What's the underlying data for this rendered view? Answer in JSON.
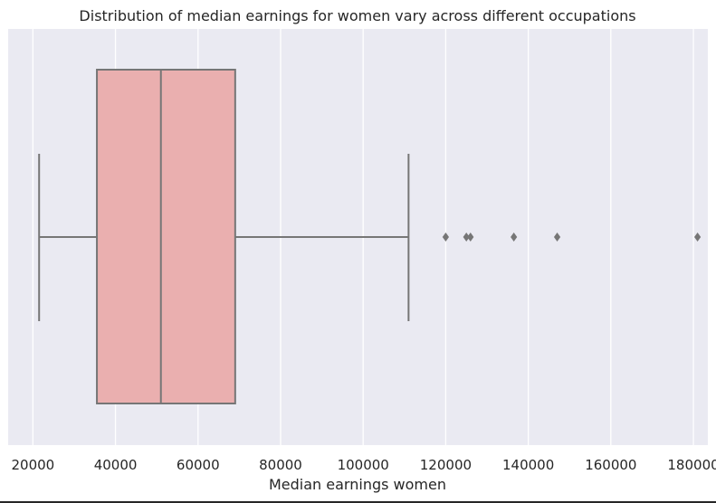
{
  "chart_data": {
    "type": "boxplot",
    "title": "Distribution of median earnings for women vary across different occupations",
    "xlabel": "Median earnings women",
    "ylabel": "",
    "xlim": [
      14000,
      183500
    ],
    "x_ticks": [
      20000,
      40000,
      60000,
      80000,
      100000,
      120000,
      140000,
      160000,
      180000
    ],
    "x_tick_labels": [
      "20000",
      "40000",
      "60000",
      "80000",
      "100000",
      "120000",
      "140000",
      "160000",
      "180000"
    ],
    "orientation": "horizontal",
    "grid": true,
    "box": {
      "whisker_low": 21500,
      "q1": 35500,
      "median": 51000,
      "q3": 69000,
      "whisker_high": 111000
    },
    "outliers": [
      120000,
      125000,
      126000,
      136500,
      147000,
      181000
    ]
  },
  "colors": {
    "plot_background": "#eaeaf2",
    "grid": "#ffffff",
    "box_fill": "#eaafaf",
    "box_edge": "#767676",
    "outlier": "#767676",
    "text": "#262626"
  }
}
